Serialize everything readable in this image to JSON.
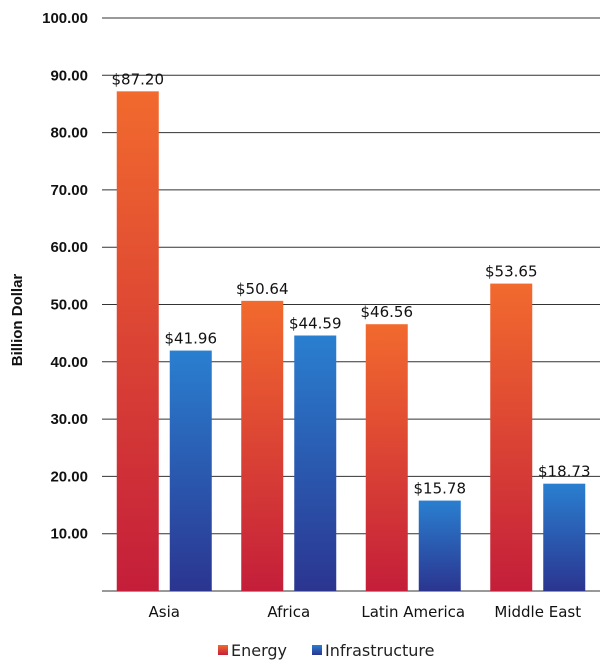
{
  "chart_data": {
    "type": "bar",
    "categories": [
      "Asia",
      "Africa",
      "Latin America",
      "Middle East"
    ],
    "series": [
      {
        "name": "Energy",
        "values": [
          87.2,
          50.64,
          46.56,
          53.65
        ],
        "labels": [
          "$87.20",
          "$50.64",
          "$46.56",
          "$53.65"
        ]
      },
      {
        "name": "Infrastructure",
        "values": [
          41.96,
          44.59,
          15.78,
          18.73
        ],
        "labels": [
          "$41.96",
          "$44.59",
          "$15.78",
          "$18.73"
        ]
      }
    ],
    "ylabel": "Billion Dollar",
    "xlabel": "",
    "ylim": [
      0,
      100
    ],
    "yticks": [
      "10.00",
      "20.00",
      "30.00",
      "40.00",
      "50.00",
      "60.00",
      "70.00",
      "80.00",
      "90.00",
      "100.00"
    ],
    "grid": true,
    "legend": "bottom-center",
    "colors": {
      "energy_top": "#f26a2e",
      "energy_bottom": "#c41e3a",
      "infrastructure_top": "#2a7fd0",
      "infrastructure_bottom": "#2b3590"
    }
  }
}
